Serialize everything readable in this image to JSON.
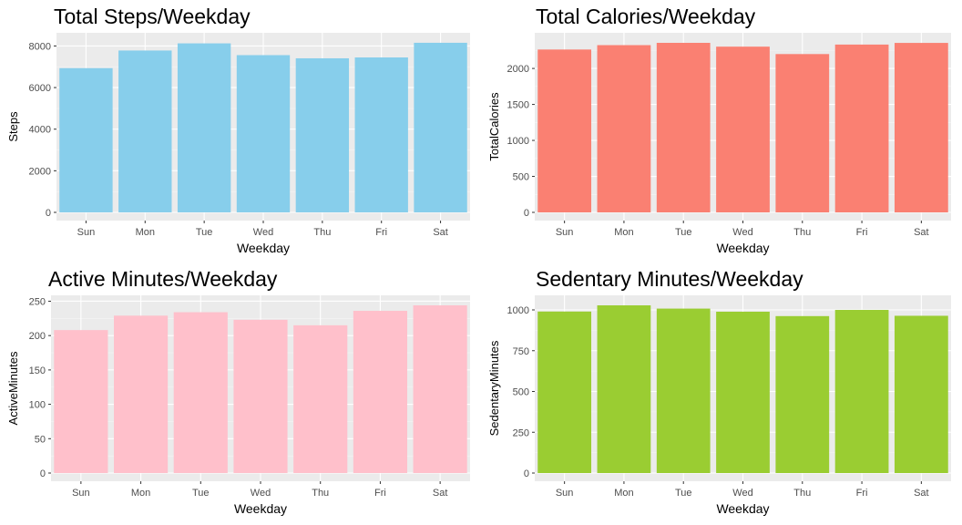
{
  "charts": [
    {
      "title": "Total Steps/Weekday",
      "xlabel": "Weekday",
      "ylabel": "Steps",
      "color": "#87CEEB",
      "chart_data": {
        "type": "bar",
        "categories": [
          "Sun",
          "Mon",
          "Tue",
          "Wed",
          "Thu",
          "Fri",
          "Sat"
        ],
        "values": [
          6933,
          7781,
          8125,
          7559,
          7406,
          7448,
          8153
        ],
        "ylim": [
          0,
          8150
        ],
        "yticks": [
          0,
          2000,
          4000,
          6000,
          8000
        ],
        "grid": true
      }
    },
    {
      "title": "Total Calories/Weekday",
      "xlabel": "Weekday",
      "ylabel": "TotalCalories",
      "color": "#FA8072",
      "chart_data": {
        "type": "bar",
        "categories": [
          "Sun",
          "Mon",
          "Tue",
          "Wed",
          "Thu",
          "Fri",
          "Sat"
        ],
        "values": [
          2263,
          2324,
          2356,
          2303,
          2200,
          2332,
          2355
        ],
        "ylim": [
          0,
          2356
        ],
        "yticks": [
          0,
          500,
          1000,
          1500,
          2000
        ],
        "grid": true
      }
    },
    {
      "title": "Active Minutes/Weekday",
      "xlabel": "Weekday",
      "ylabel": "ActiveMinutes",
      "color": "#FFC0CB",
      "chart_data": {
        "type": "bar",
        "categories": [
          "Sun",
          "Mon",
          "Tue",
          "Wed",
          "Thu",
          "Fri",
          "Sat"
        ],
        "values": [
          208,
          229,
          234,
          223,
          215,
          236,
          244
        ],
        "ylim": [
          0,
          244
        ],
        "yticks": [
          0,
          50,
          100,
          150,
          200,
          250
        ],
        "grid": true
      }
    },
    {
      "title": "Sedentary Minutes/Weekday",
      "xlabel": "Weekday",
      "ylabel": "SedentaryMinutes",
      "color": "#9ACD32",
      "chart_data": {
        "type": "bar",
        "categories": [
          "Sun",
          "Mon",
          "Tue",
          "Wed",
          "Thu",
          "Fri",
          "Sat"
        ],
        "values": [
          990,
          1028,
          1008,
          989,
          962,
          1000,
          964
        ],
        "ylim": [
          0,
          1028
        ],
        "yticks": [
          0,
          250,
          500,
          750,
          1000
        ],
        "grid": true
      }
    }
  ]
}
